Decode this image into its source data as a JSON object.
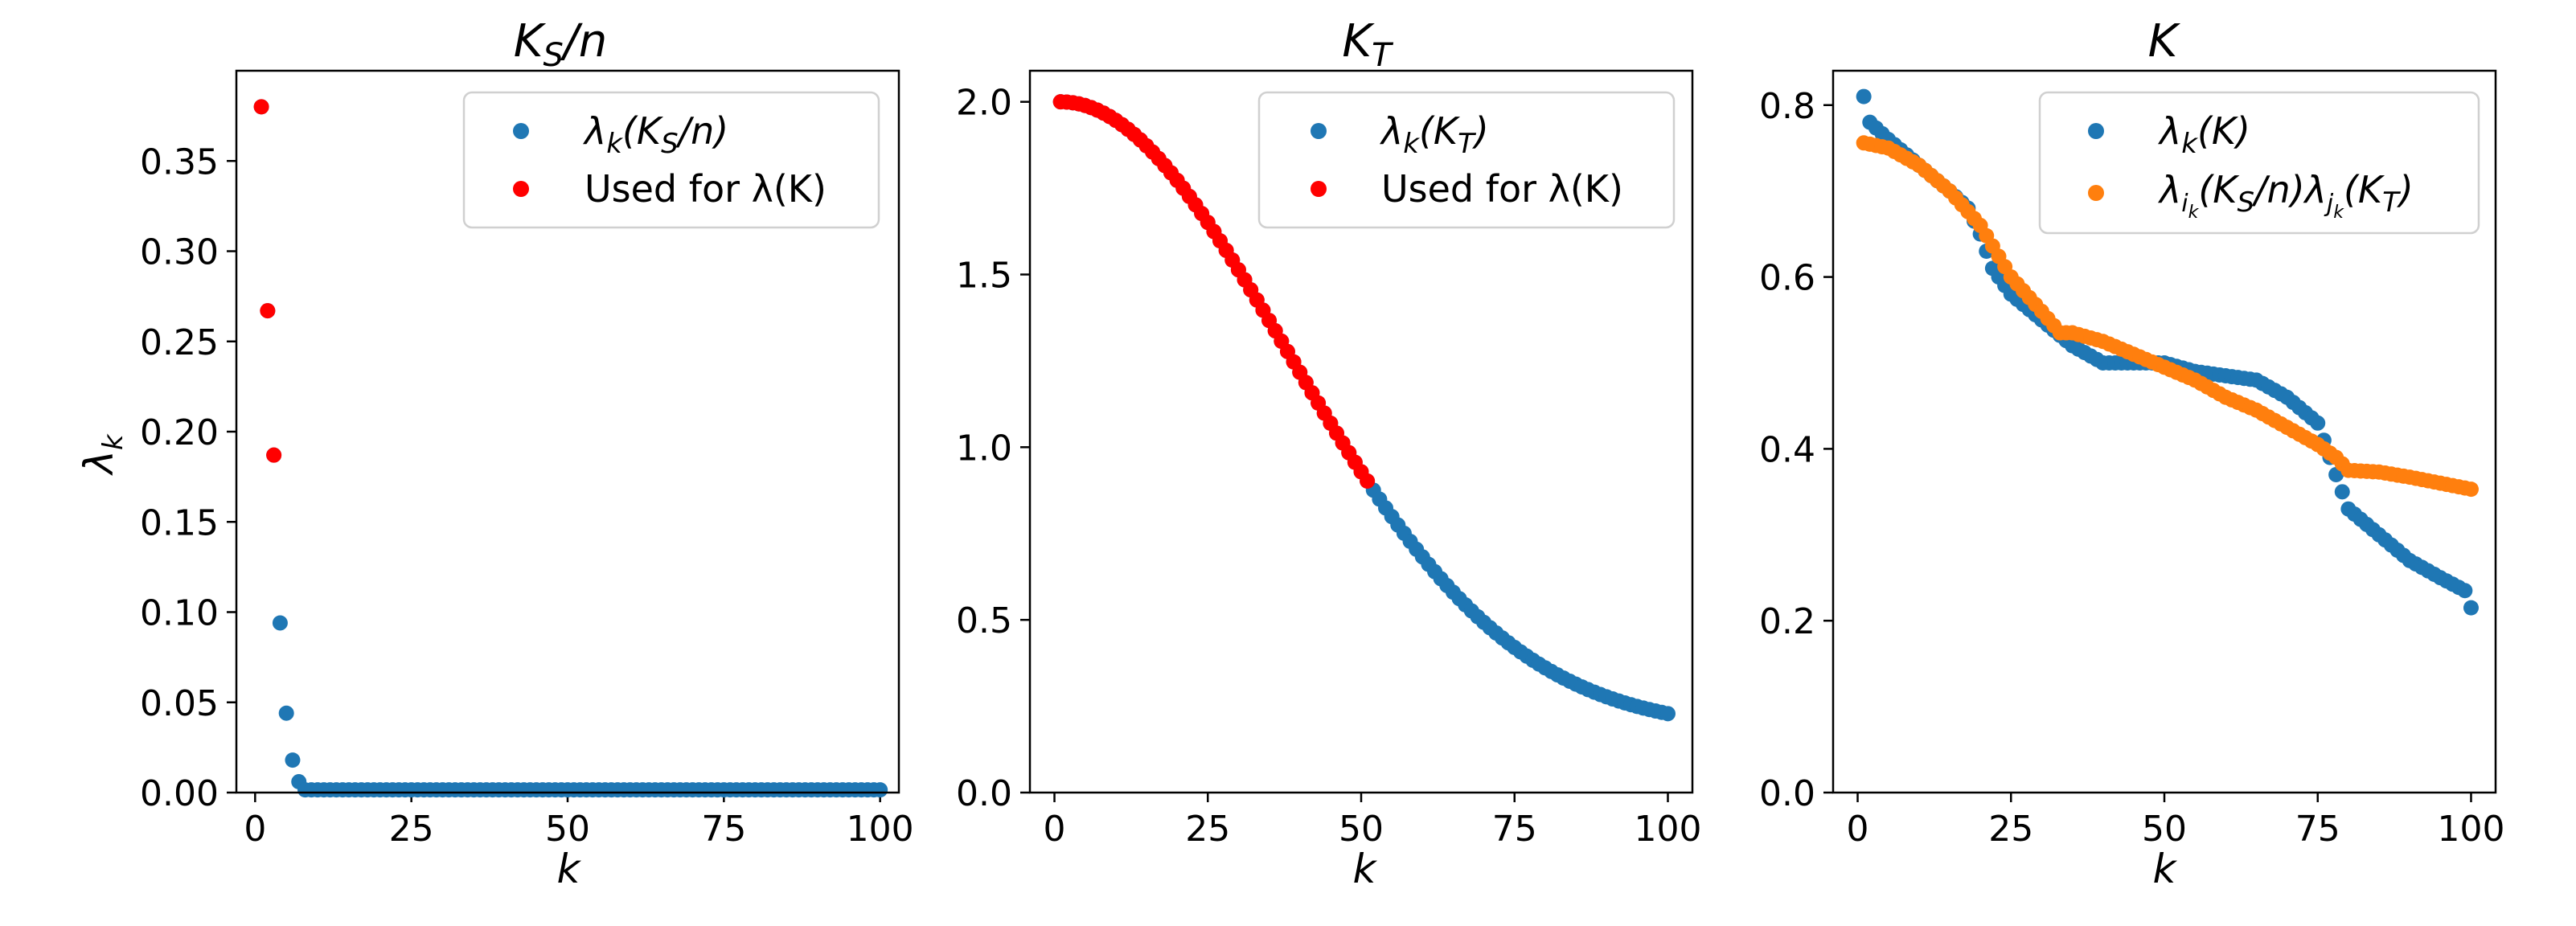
{
  "figure": {
    "ylabel": "λ_k"
  },
  "chart_data": [
    {
      "type": "scatter",
      "title": "K_S/n",
      "xlabel": "k",
      "ylabel": "λ_k",
      "xlim": [
        -3,
        103
      ],
      "ylim": [
        0,
        0.4
      ],
      "xticks": [
        0,
        25,
        50,
        75,
        100
      ],
      "xtick_labels": [
        "0",
        "25",
        "50",
        "75",
        "100"
      ],
      "yticks": [
        0,
        0.05,
        0.1,
        0.15,
        0.2,
        0.25,
        0.3,
        0.35
      ],
      "ytick_labels": [
        "0.00",
        "0.05",
        "0.10",
        "0.15",
        "0.20",
        "0.25",
        "0.30",
        "0.35"
      ],
      "legend_position": "upper-right",
      "series": [
        {
          "name": "λ_k(K_S/n)",
          "label_parts": [
            "λ",
            "k",
            "(K",
            "S",
            "/n)"
          ],
          "label_format": "sub",
          "color": "#1f77b4",
          "model": "ks",
          "range": [
            1,
            100
          ]
        },
        {
          "name": "Used for λ(K)",
          "label_parts": [
            "Used for λ(K)"
          ],
          "label_format": "plain",
          "color": "#ff0000",
          "model": "ks",
          "range": [
            1,
            3
          ]
        }
      ]
    },
    {
      "type": "scatter",
      "title": "K_T",
      "xlabel": "k",
      "ylabel": "",
      "xlim": [
        -4,
        104
      ],
      "ylim": [
        0,
        2.09
      ],
      "xticks": [
        0,
        25,
        50,
        75,
        100
      ],
      "xtick_labels": [
        "0",
        "25",
        "50",
        "75",
        "100"
      ],
      "yticks": [
        0,
        0.5,
        1.0,
        1.5,
        2.0
      ],
      "ytick_labels": [
        "0.0",
        "0.5",
        "1.0",
        "1.5",
        "2.0"
      ],
      "legend_position": "upper-right",
      "series": [
        {
          "name": "λ_k(K_T)",
          "label_parts": [
            "λ",
            "k",
            "(K",
            "T",
            ")"
          ],
          "label_format": "sub",
          "color": "#1f77b4",
          "model": "kt",
          "range": [
            1,
            100
          ]
        },
        {
          "name": "Used for λ(K)",
          "label_parts": [
            "Used for λ(K)"
          ],
          "label_format": "plain",
          "color": "#ff0000",
          "model": "kt",
          "range": [
            1,
            51
          ]
        }
      ]
    },
    {
      "type": "scatter",
      "title": "K",
      "xlabel": "k",
      "ylabel": "",
      "xlim": [
        -4,
        104
      ],
      "ylim": [
        0,
        0.84
      ],
      "xticks": [
        0,
        25,
        50,
        75,
        100
      ],
      "xtick_labels": [
        "0",
        "25",
        "50",
        "75",
        "100"
      ],
      "yticks": [
        0,
        0.2,
        0.4,
        0.6,
        0.8
      ],
      "ytick_labels": [
        "0.0",
        "0.2",
        "0.4",
        "0.6",
        "0.8"
      ],
      "legend_position": "upper-right",
      "series": [
        {
          "name": "λ_k(K)",
          "label_parts": [
            "λ",
            "k",
            "(K)"
          ],
          "label_format": "sub",
          "color": "#1f77b4",
          "model": "interp",
          "keypoints": [
            [
              1,
              0.81
            ],
            [
              2,
              0.78
            ],
            [
              5,
              0.76
            ],
            [
              10,
              0.73
            ],
            [
              15,
              0.7
            ],
            [
              18,
              0.68
            ],
            [
              20,
              0.65
            ],
            [
              22,
              0.61
            ],
            [
              25,
              0.58
            ],
            [
              30,
              0.55
            ],
            [
              35,
              0.52
            ],
            [
              40,
              0.5
            ],
            [
              50,
              0.5
            ],
            [
              55,
              0.49
            ],
            [
              60,
              0.485
            ],
            [
              65,
              0.48
            ],
            [
              70,
              0.46
            ],
            [
              75,
              0.43
            ],
            [
              76,
              0.41
            ],
            [
              78,
              0.37
            ],
            [
              80,
              0.33
            ],
            [
              85,
              0.3
            ],
            [
              90,
              0.27
            ],
            [
              95,
              0.25
            ],
            [
              99,
              0.235
            ],
            [
              100,
              0.215
            ]
          ]
        },
        {
          "name": "λ_{i_k}(K_S/n)λ_{j_k}(K_T)",
          "label_parts": [
            "λ",
            "i",
            "k",
            "(K",
            "S",
            "/n)λ",
            "j",
            "k",
            "(K",
            "T",
            ")"
          ],
          "label_format": "product",
          "color": "#ff7f0e",
          "model": "interp",
          "keypoints": [
            [
              1,
              0.756
            ],
            [
              5,
              0.75
            ],
            [
              10,
              0.73
            ],
            [
              15,
              0.7
            ],
            [
              20,
              0.66
            ],
            [
              25,
              0.6
            ],
            [
              30,
              0.56
            ],
            [
              33,
              0.535
            ],
            [
              35,
              0.535
            ],
            [
              40,
              0.525
            ],
            [
              45,
              0.51
            ],
            [
              50,
              0.495
            ],
            [
              55,
              0.48
            ],
            [
              60,
              0.46
            ],
            [
              65,
              0.445
            ],
            [
              70,
              0.425
            ],
            [
              75,
              0.405
            ],
            [
              78,
              0.39
            ],
            [
              80,
              0.375
            ],
            [
              85,
              0.373
            ],
            [
              90,
              0.367
            ],
            [
              95,
              0.36
            ],
            [
              100,
              0.353
            ]
          ]
        }
      ]
    }
  ]
}
